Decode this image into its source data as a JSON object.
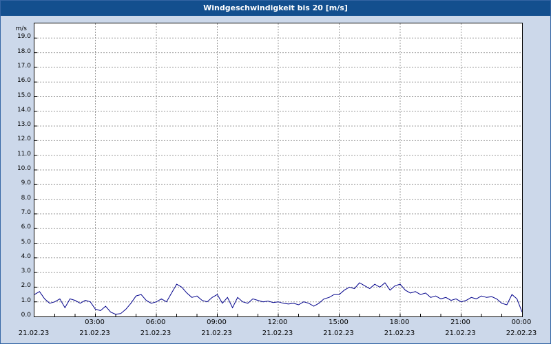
{
  "title_bar": {
    "title": "Windgeschwindigkeit bis 20 [m/s]"
  },
  "colors": {
    "page_bg": "#ccd8ea",
    "titlebar_bg": "#134f8e",
    "titlebar_text": "#ffffff",
    "plot_bg": "#ffffff",
    "grid": "#999999",
    "axis": "#000000",
    "line": "#00008b",
    "frame_border": "#3465a4"
  },
  "chart_data": {
    "type": "line",
    "title": "Windgeschwindigkeit bis 20 [m/s]",
    "ylabel_unit": "m/s",
    "ylim": [
      0,
      20
    ],
    "ytick_step": 1,
    "ytick_labels": [
      "0.0",
      "1.0",
      "2.0",
      "3.0",
      "4.0",
      "5.0",
      "6.0",
      "7.0",
      "8.0",
      "9.0",
      "10.0",
      "11.0",
      "12.0",
      "13.0",
      "14.0",
      "15.0",
      "16.0",
      "17.0",
      "18.0",
      "19.0"
    ],
    "grid": "dashed",
    "legend": "none",
    "x_start_hour": 0,
    "x_step_hours": 0.25,
    "xticks": [
      {
        "hour": 0,
        "time": "",
        "date": "21.02.23"
      },
      {
        "hour": 3,
        "time": "03:00",
        "date": "21.02.23"
      },
      {
        "hour": 6,
        "time": "06:00",
        "date": "21.02.23"
      },
      {
        "hour": 9,
        "time": "09:00",
        "date": "21.02.23"
      },
      {
        "hour": 12,
        "time": "12:00",
        "date": "21.02.23"
      },
      {
        "hour": 15,
        "time": "15:00",
        "date": "21.02.23"
      },
      {
        "hour": 18,
        "time": "18:00",
        "date": "21.02.23"
      },
      {
        "hour": 21,
        "time": "21:00",
        "date": "21.02.23"
      },
      {
        "hour": 24,
        "time": "00:00",
        "date": "22.02.23"
      }
    ],
    "series": [
      {
        "name": "Windgeschwindigkeit",
        "unit": "m/s",
        "values": [
          1.5,
          1.7,
          1.2,
          0.9,
          1.0,
          1.2,
          0.6,
          1.2,
          1.1,
          0.9,
          1.1,
          1.0,
          0.5,
          0.4,
          0.7,
          0.3,
          0.15,
          0.2,
          0.5,
          0.9,
          1.4,
          1.5,
          1.1,
          0.9,
          1.0,
          1.2,
          1.0,
          1.6,
          2.2,
          2.0,
          1.6,
          1.3,
          1.4,
          1.1,
          1.0,
          1.3,
          1.5,
          0.9,
          1.3,
          0.6,
          1.3,
          1.0,
          0.9,
          1.2,
          1.1,
          1.0,
          1.05,
          0.95,
          1.0,
          0.9,
          0.85,
          0.9,
          0.8,
          1.0,
          0.9,
          0.7,
          0.9,
          1.2,
          1.3,
          1.5,
          1.5,
          1.8,
          2.0,
          1.9,
          2.3,
          2.1,
          1.9,
          2.2,
          2.0,
          2.3,
          1.8,
          2.1,
          2.2,
          1.8,
          1.6,
          1.7,
          1.5,
          1.6,
          1.3,
          1.4,
          1.2,
          1.3,
          1.1,
          1.2,
          1.0,
          1.1,
          1.3,
          1.2,
          1.4,
          1.3,
          1.35,
          1.2,
          0.9,
          0.8,
          1.5,
          1.2,
          0.3
        ]
      }
    ]
  }
}
